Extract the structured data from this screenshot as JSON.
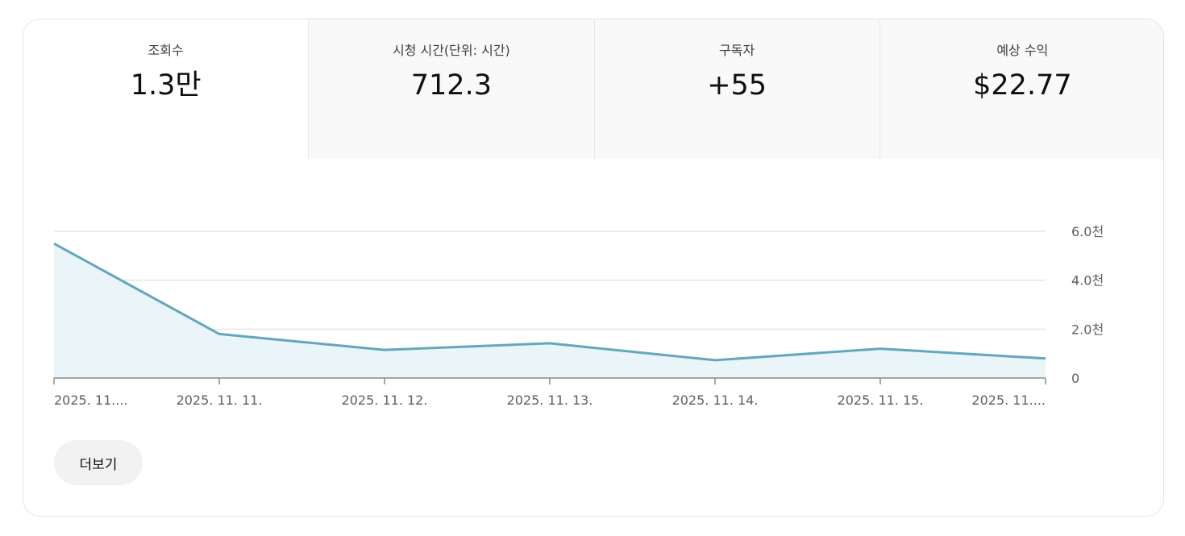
{
  "metrics": [
    {
      "label": "조회수",
      "value": "1.3만"
    },
    {
      "label": "시청 시간(단위: 시간)",
      "value": "712.3"
    },
    {
      "label": "구독자",
      "value": "+55"
    },
    {
      "label": "예상 수익",
      "value": "$22.77"
    }
  ],
  "chart_data": {
    "type": "area",
    "x_labels": [
      "2025. 11....",
      "2025. 11. 11.",
      "2025. 11. 12.",
      "2025. 11. 13.",
      "2025. 11. 14.",
      "2025. 11. 15.",
      "2025. 11...."
    ],
    "values": [
      5500,
      1800,
      1150,
      1420,
      730,
      1200,
      800
    ],
    "y_ticks": [
      "6.0천",
      "4.0천",
      "2.0천",
      "0"
    ],
    "y_tick_values": [
      6000,
      4000,
      2000,
      0
    ],
    "ylim": [
      0,
      6000
    ],
    "grid": true,
    "line_color": "#64a6bd",
    "fill_color": "#e9f5f8"
  },
  "more_button": {
    "label": "더보기"
  }
}
